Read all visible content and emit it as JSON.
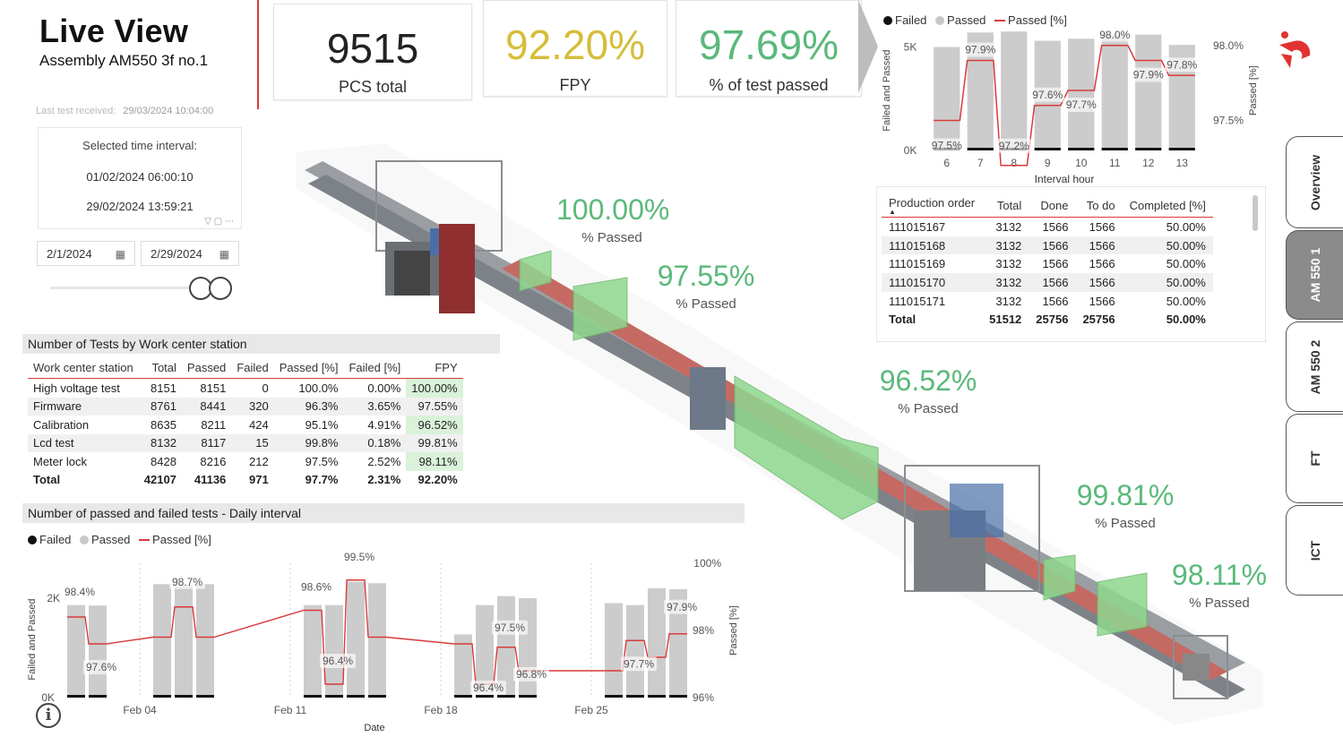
{
  "header": {
    "title": "Live View",
    "subtitle": "Assembly AM550 3f no.1",
    "last_test_label": "Last test received:",
    "last_test_value": "29/03/2024 10:04:00"
  },
  "kpis": [
    {
      "value": "9515",
      "label": "PCS total",
      "color": "#222222"
    },
    {
      "value": "92.20%",
      "label": "FPY",
      "color": "#d6bd3a"
    },
    {
      "value": "97.69%",
      "label": "% of test passed",
      "color": "#5ab97a"
    }
  ],
  "interval": {
    "label": "Selected time interval:",
    "from": "01/02/2024 06:00:10",
    "to": "29/02/2024 13:59:21",
    "date_start": "2/1/2024",
    "date_end": "2/29/2024"
  },
  "stations": [
    {
      "value": "100.00%",
      "label": "% Passed"
    },
    {
      "value": "97.55%",
      "label": "% Passed"
    },
    {
      "value": "96.52%",
      "label": "% Passed"
    },
    {
      "value": "99.81%",
      "label": "% Passed"
    },
    {
      "value": "98.11%",
      "label": "% Passed"
    }
  ],
  "wc_table": {
    "title": "Number of Tests by Work center station",
    "headers": [
      "Work center station",
      "Total",
      "Passed",
      "Failed",
      "Passed [%]",
      "Failed [%]",
      "FPY"
    ],
    "rows": [
      [
        "High voltage test",
        "8151",
        "8151",
        "0",
        "100.0%",
        "0.00%",
        "100.00%"
      ],
      [
        "Firmware",
        "8761",
        "8441",
        "320",
        "96.3%",
        "3.65%",
        "97.55%"
      ],
      [
        "Calibration",
        "8635",
        "8211",
        "424",
        "95.1%",
        "4.91%",
        "96.52%"
      ],
      [
        "Lcd test",
        "8132",
        "8117",
        "15",
        "99.8%",
        "0.18%",
        "99.81%"
      ],
      [
        "Meter lock",
        "8428",
        "8216",
        "212",
        "97.5%",
        "2.52%",
        "98.11%"
      ]
    ],
    "total": [
      "Total",
      "42107",
      "41136",
      "971",
      "97.7%",
      "2.31%",
      "92.20%"
    ]
  },
  "po_table": {
    "headers": [
      "Production order",
      "Total",
      "Done",
      "To do",
      "Completed [%]"
    ],
    "rows": [
      [
        "111015167",
        "3132",
        "1566",
        "1566",
        "50.00%"
      ],
      [
        "111015168",
        "3132",
        "1566",
        "1566",
        "50.00%"
      ],
      [
        "111015169",
        "3132",
        "1566",
        "1566",
        "50.00%"
      ],
      [
        "111015170",
        "3132",
        "1566",
        "1566",
        "50.00%"
      ],
      [
        "111015171",
        "3132",
        "1566",
        "1566",
        "50.00%"
      ]
    ],
    "total": [
      "Total",
      "51512",
      "25756",
      "25756",
      "50.00%"
    ]
  },
  "tabs": [
    "Overview",
    "AM 550 1",
    "AM 550 2",
    "FT",
    "ICT"
  ],
  "colors": {
    "accent": "#d93a3a",
    "passed_bar": "#cccccc",
    "failed_bar": "#111111",
    "station_green": "#5ab97a"
  },
  "legend": {
    "failed": "Failed",
    "passed": "Passed",
    "passed_pct": "Passed [%]"
  },
  "chart_data": [
    {
      "type": "bar",
      "title": "",
      "xlabel": "Interval hour",
      "ylabel": "Failed and Passed",
      "y2label": "Passed [%]",
      "categories": [
        "6",
        "7",
        "8",
        "9",
        "10",
        "11",
        "12",
        "13"
      ],
      "ylim": [
        0,
        5800
      ],
      "y_ticks": [
        "0K",
        "5K"
      ],
      "y2lim": [
        97.3,
        98.1
      ],
      "y2_ticks": [
        "97.5%",
        "98.0%"
      ],
      "series": [
        {
          "name": "Failed",
          "values": [
            120,
            100,
            150,
            110,
            100,
            100,
            110,
            90
          ]
        },
        {
          "name": "Passed",
          "values": [
            5000,
            5700,
            5750,
            5300,
            5400,
            5600,
            5600,
            5100
          ]
        },
        {
          "name": "Passed [%]",
          "values": [
            97.5,
            97.9,
            97.2,
            97.6,
            97.7,
            98.0,
            97.9,
            97.8
          ]
        }
      ],
      "data_labels": [
        "97.5%",
        "97.9%",
        "97.2%",
        "97.6%",
        "97.7%",
        "98.0%",
        "97.9%",
        "97.8%"
      ]
    },
    {
      "type": "bar",
      "title": "Number of passed and failed tests - Daily interval",
      "xlabel": "Date",
      "ylabel": "Failed and Passed",
      "y2label": "Passed [%]",
      "x_ticks": [
        "Feb 04",
        "Feb 11",
        "Feb 18",
        "Feb 25"
      ],
      "ylim": [
        0,
        2700
      ],
      "y_ticks": [
        "0K",
        "2K"
      ],
      "y2lim": [
        96,
        100
      ],
      "y2_ticks": [
        "96%",
        "98%",
        "100%"
      ],
      "x": [
        "2024-02-01",
        "2024-02-02",
        "2024-02-05",
        "2024-02-06",
        "2024-02-07",
        "2024-02-12",
        "2024-02-13",
        "2024-02-14",
        "2024-02-15",
        "2024-02-19",
        "2024-02-20",
        "2024-02-21",
        "2024-02-22",
        "2024-02-26",
        "2024-02-27",
        "2024-02-28",
        "2024-02-29"
      ],
      "series": [
        {
          "name": "Failed",
          "values": [
            40,
            45,
            30,
            35,
            25,
            30,
            80,
            25,
            30,
            40,
            60,
            30,
            50,
            45,
            40,
            50,
            35
          ]
        },
        {
          "name": "Passed",
          "values": [
            1860,
            1850,
            2280,
            2270,
            2280,
            1860,
            1860,
            2330,
            2300,
            1270,
            1860,
            2040,
            2000,
            1900,
            1860,
            2200,
            2180
          ]
        },
        {
          "name": "Passed [%]",
          "values": [
            98.4,
            97.6,
            97.8,
            98.7,
            97.8,
            98.6,
            96.4,
            99.5,
            97.8,
            97.6,
            96.4,
            97.5,
            96.8,
            96.8,
            97.7,
            97.2,
            97.9
          ]
        }
      ],
      "data_labels": [
        "98.4%",
        "97.6%",
        "98.7%",
        "98.6%",
        "96.4%",
        "99.5%",
        "96.4%",
        "97.5%",
        "96.8%",
        "97.7%",
        "97.9%"
      ]
    }
  ]
}
